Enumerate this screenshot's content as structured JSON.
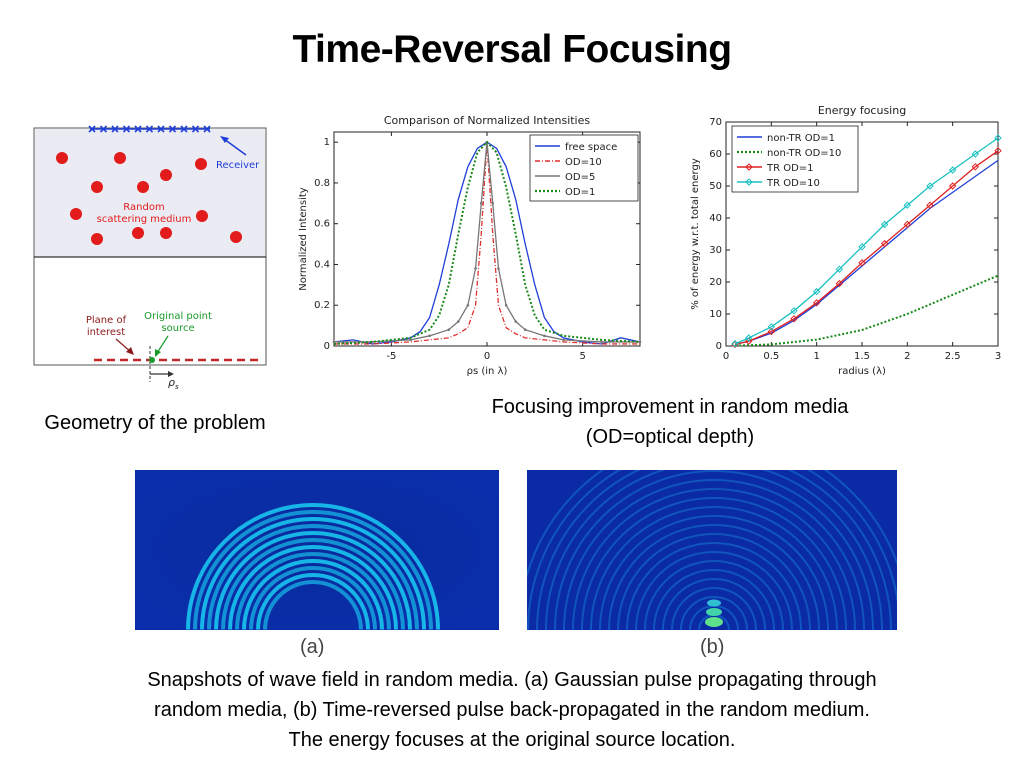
{
  "slide": {
    "title": "Time-Reversal Focusing"
  },
  "geometry": {
    "receiver_label": "Receiver",
    "medium_label_1": "Random",
    "medium_label_2": "scattering medium",
    "plane_label_1": "Plane of",
    "plane_label_2": "interest",
    "source_label_1": "Original point",
    "source_label_2": "source",
    "rho_label": "ρ",
    "rho_sub": "s",
    "caption": "Geometry of the problem"
  },
  "focusing_caption": {
    "line1": "Focusing improvement in random media",
    "line2": "(OD=optical depth)"
  },
  "snapshots": {
    "label_a": "(a)",
    "label_b": "(b)",
    "caption_line1": "Snapshots of wave field in random media. (a)  Gaussian pulse propagating through",
    "caption_line2": "random media, (b)  Time-reversed pulse back-propagated in the random medium.",
    "caption_line3": "The energy focuses at the original source location."
  },
  "chart_data": [
    {
      "type": "line",
      "title": "Comparison of Normalized Intensities",
      "xlabel": "ρs (in λ)",
      "ylabel": "Normalized Intensity",
      "xlim": [
        -8,
        8
      ],
      "ylim": [
        0,
        1.05
      ],
      "xticks": [
        -5,
        0,
        5
      ],
      "yticks": [
        0,
        0.2,
        0.4,
        0.6,
        0.8,
        1
      ],
      "legend": "top-right",
      "grid": false,
      "series": [
        {
          "name": "free space",
          "color": "#1f3fd9",
          "style": "solid",
          "x": [
            -8,
            -7,
            -6,
            -5,
            -4,
            -3.5,
            -3,
            -2.5,
            -2,
            -1.5,
            -1,
            -0.5,
            0,
            0.5,
            1,
            1.5,
            2,
            2.5,
            3,
            3.5,
            4,
            5,
            6,
            7,
            8
          ],
          "y": [
            0.02,
            0.03,
            0.01,
            0.02,
            0.04,
            0.07,
            0.14,
            0.3,
            0.5,
            0.72,
            0.88,
            0.97,
            1.0,
            0.97,
            0.88,
            0.72,
            0.5,
            0.3,
            0.14,
            0.07,
            0.04,
            0.02,
            0.01,
            0.04,
            0.02
          ]
        },
        {
          "name": "OD=10",
          "color": "#e03030",
          "style": "dashdot",
          "x": [
            -8,
            -6,
            -4,
            -3,
            -2,
            -1.5,
            -1,
            -0.6,
            -0.3,
            0,
            0.3,
            0.6,
            1,
            1.5,
            2,
            3,
            4,
            6,
            8
          ],
          "y": [
            0.01,
            0.01,
            0.02,
            0.03,
            0.04,
            0.06,
            0.09,
            0.2,
            0.55,
            1.0,
            0.55,
            0.2,
            0.09,
            0.06,
            0.04,
            0.03,
            0.02,
            0.01,
            0.01
          ]
        },
        {
          "name": "OD=5",
          "color": "#777777",
          "style": "marker",
          "x": [
            -8,
            -6,
            -4,
            -3,
            -2,
            -1.5,
            -1,
            -0.6,
            -0.3,
            0,
            0.3,
            0.6,
            1,
            1.5,
            2,
            3,
            4,
            6,
            8
          ],
          "y": [
            0.02,
            0.02,
            0.03,
            0.05,
            0.08,
            0.12,
            0.2,
            0.38,
            0.7,
            1.0,
            0.7,
            0.38,
            0.2,
            0.12,
            0.08,
            0.05,
            0.03,
            0.02,
            0.02
          ]
        },
        {
          "name": "OD=1",
          "color": "#1a8a1a",
          "style": "dotted",
          "x": [
            -8,
            -6,
            -5,
            -4,
            -3,
            -2.5,
            -2,
            -1.5,
            -1,
            -0.5,
            0,
            0.5,
            1,
            1.5,
            2,
            2.5,
            3,
            4,
            5,
            6,
            8
          ],
          "y": [
            0.01,
            0.02,
            0.03,
            0.04,
            0.08,
            0.15,
            0.3,
            0.55,
            0.78,
            0.95,
            1.0,
            0.95,
            0.78,
            0.55,
            0.3,
            0.15,
            0.08,
            0.05,
            0.04,
            0.03,
            0.02
          ]
        }
      ]
    },
    {
      "type": "line",
      "title": "Energy focusing",
      "xlabel": "radius (λ)",
      "ylabel": "% of energy w.r.t. total energy",
      "xlim": [
        0,
        3
      ],
      "ylim": [
        0,
        70
      ],
      "xticks": [
        0,
        0.5,
        1,
        1.5,
        2,
        2.5,
        3
      ],
      "yticks": [
        0,
        10,
        20,
        30,
        40,
        50,
        60,
        70
      ],
      "legend": "top-left",
      "grid": false,
      "series": [
        {
          "name": "non-TR OD=1",
          "color": "#1f3fd9",
          "style": "solid",
          "x": [
            0.1,
            0.25,
            0.5,
            0.75,
            1,
            1.25,
            1.5,
            1.75,
            2,
            2.25,
            2.5,
            2.75,
            3
          ],
          "y": [
            0.5,
            1.5,
            4,
            8,
            13,
            19,
            25,
            31,
            37,
            43,
            48,
            53,
            58
          ]
        },
        {
          "name": "non-TR OD=10",
          "color": "#1a8a1a",
          "style": "dotted",
          "x": [
            0.1,
            0.5,
            1,
            1.5,
            2,
            2.5,
            3
          ],
          "y": [
            0.1,
            0.5,
            2,
            5,
            10,
            16,
            22
          ]
        },
        {
          "name": "TR OD=1",
          "color": "#e02020",
          "style": "diamond",
          "x": [
            0.1,
            0.25,
            0.5,
            0.75,
            1,
            1.25,
            1.5,
            1.75,
            2,
            2.25,
            2.5,
            2.75,
            3
          ],
          "y": [
            0.5,
            1.5,
            4.5,
            8.5,
            13.5,
            19.5,
            26,
            32,
            38,
            44,
            50,
            56,
            61
          ]
        },
        {
          "name": "TR OD=10",
          "color": "#19c0c0",
          "style": "diamond",
          "x": [
            0.1,
            0.25,
            0.5,
            0.75,
            1,
            1.25,
            1.5,
            1.75,
            2,
            2.25,
            2.5,
            2.75,
            3
          ],
          "y": [
            0.7,
            2.5,
            6,
            11,
            17,
            24,
            31,
            38,
            44,
            50,
            55,
            60,
            65
          ]
        }
      ]
    }
  ]
}
